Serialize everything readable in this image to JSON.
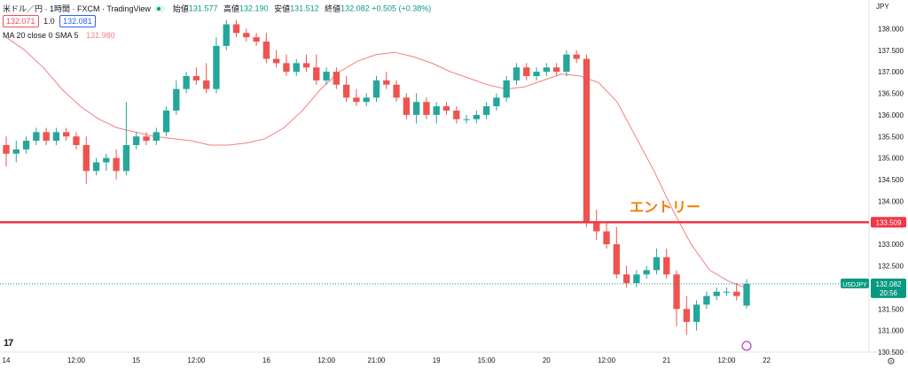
{
  "header": {
    "symbol_title": "米ドル／円 · 1時間 · FXCM · TradingView",
    "open_label": "始値",
    "open": "131.577",
    "high_label": "高値",
    "high": "132.190",
    "low_label": "安値",
    "low": "131.512",
    "close_label": "終値",
    "close": "132.082",
    "change": "+0.505 (+0.38%)",
    "bid": "132.071",
    "spread": "1.0",
    "ask": "132.081"
  },
  "indicator": {
    "label": "MA 20 close 0 SMA 5",
    "value": "131.980"
  },
  "annotation": {
    "text": "エントリー",
    "level": "133.509"
  },
  "colors": {
    "up": "#26a69a",
    "down": "#ef5350",
    "ma": "#f77c80",
    "entry_line": "#f23645",
    "annotation": "#f57c00",
    "price_tag": "#089981"
  },
  "current_price_tag": {
    "symbol": "USDJPY",
    "price": "132.082",
    "countdown": "20:56"
  },
  "chart_data": {
    "type": "candlestick",
    "currency": "JPY",
    "ylim": [
      130.5,
      138.5
    ],
    "y_ticks": [
      "138.000",
      "137.500",
      "137.000",
      "136.500",
      "136.000",
      "135.500",
      "135.000",
      "134.500",
      "134.000",
      "133.500",
      "133.000",
      "132.500",
      "132.000",
      "131.500",
      "131.000",
      "130.500"
    ],
    "x_ticks": [
      "14",
      "12:00",
      "15",
      "12:00",
      "16",
      "12:00",
      "21:00",
      "19",
      "15:00",
      "20",
      "12:00",
      "21",
      "12:00",
      "22"
    ],
    "ma_series_name": "MA 20 close 0 SMA 5",
    "ma": [
      137.8,
      137.5,
      137.1,
      136.6,
      136.2,
      135.9,
      135.7,
      135.6,
      135.5,
      135.45,
      135.4,
      135.3,
      135.3,
      135.35,
      135.45,
      135.7,
      136.1,
      136.6,
      137.0,
      137.25,
      137.4,
      137.45,
      137.35,
      137.2,
      137.0,
      136.85,
      136.7,
      136.6,
      136.65,
      136.8,
      136.95,
      136.9,
      136.75,
      136.3,
      135.5,
      134.7,
      133.8,
      133.0,
      132.4,
      132.15,
      131.98
    ],
    "candles": [
      {
        "o": 135.3,
        "h": 135.5,
        "l": 134.8,
        "c": 135.1
      },
      {
        "o": 135.1,
        "h": 135.4,
        "l": 134.9,
        "c": 135.2
      },
      {
        "o": 135.2,
        "h": 135.5,
        "l": 135.1,
        "c": 135.4
      },
      {
        "o": 135.4,
        "h": 135.7,
        "l": 135.3,
        "c": 135.6
      },
      {
        "o": 135.6,
        "h": 135.7,
        "l": 135.3,
        "c": 135.4
      },
      {
        "o": 135.4,
        "h": 135.7,
        "l": 135.3,
        "c": 135.6
      },
      {
        "o": 135.6,
        "h": 135.7,
        "l": 135.4,
        "c": 135.5
      },
      {
        "o": 135.5,
        "h": 135.6,
        "l": 135.2,
        "c": 135.3
      },
      {
        "o": 135.3,
        "h": 135.5,
        "l": 134.4,
        "c": 134.7
      },
      {
        "o": 134.7,
        "h": 135.0,
        "l": 134.6,
        "c": 134.9
      },
      {
        "o": 134.9,
        "h": 135.1,
        "l": 134.7,
        "c": 135.0
      },
      {
        "o": 135.0,
        "h": 135.2,
        "l": 134.5,
        "c": 134.7
      },
      {
        "o": 134.7,
        "h": 136.3,
        "l": 134.6,
        "c": 135.3
      },
      {
        "o": 135.3,
        "h": 135.6,
        "l": 135.2,
        "c": 135.5
      },
      {
        "o": 135.5,
        "h": 135.6,
        "l": 135.3,
        "c": 135.4
      },
      {
        "o": 135.4,
        "h": 135.7,
        "l": 135.3,
        "c": 135.6
      },
      {
        "o": 135.6,
        "h": 136.2,
        "l": 135.5,
        "c": 136.1
      },
      {
        "o": 136.1,
        "h": 136.8,
        "l": 136.0,
        "c": 136.6
      },
      {
        "o": 136.6,
        "h": 137.0,
        "l": 136.5,
        "c": 136.9
      },
      {
        "o": 136.9,
        "h": 137.1,
        "l": 136.7,
        "c": 136.8
      },
      {
        "o": 136.8,
        "h": 137.2,
        "l": 136.5,
        "c": 136.6
      },
      {
        "o": 136.6,
        "h": 137.8,
        "l": 136.5,
        "c": 137.6
      },
      {
        "o": 137.6,
        "h": 138.2,
        "l": 137.5,
        "c": 138.1
      },
      {
        "o": 138.1,
        "h": 138.2,
        "l": 137.8,
        "c": 137.9
      },
      {
        "o": 137.9,
        "h": 138.0,
        "l": 137.7,
        "c": 137.8
      },
      {
        "o": 137.8,
        "h": 137.9,
        "l": 137.6,
        "c": 137.7
      },
      {
        "o": 137.7,
        "h": 137.9,
        "l": 137.2,
        "c": 137.3
      },
      {
        "o": 137.3,
        "h": 137.5,
        "l": 137.1,
        "c": 137.2
      },
      {
        "o": 137.2,
        "h": 137.4,
        "l": 136.9,
        "c": 137.0
      },
      {
        "o": 137.0,
        "h": 137.3,
        "l": 136.9,
        "c": 137.2
      },
      {
        "o": 137.2,
        "h": 137.4,
        "l": 137.0,
        "c": 137.1
      },
      {
        "o": 137.1,
        "h": 137.4,
        "l": 136.7,
        "c": 136.8
      },
      {
        "o": 136.8,
        "h": 137.1,
        "l": 136.7,
        "c": 137.0
      },
      {
        "o": 137.0,
        "h": 137.1,
        "l": 136.6,
        "c": 136.7
      },
      {
        "o": 136.7,
        "h": 136.9,
        "l": 136.3,
        "c": 136.4
      },
      {
        "o": 136.4,
        "h": 136.6,
        "l": 136.2,
        "c": 136.3
      },
      {
        "o": 136.3,
        "h": 136.5,
        "l": 136.2,
        "c": 136.4
      },
      {
        "o": 136.4,
        "h": 136.9,
        "l": 136.3,
        "c": 136.8
      },
      {
        "o": 136.8,
        "h": 137.0,
        "l": 136.6,
        "c": 136.7
      },
      {
        "o": 136.7,
        "h": 136.8,
        "l": 136.3,
        "c": 136.4
      },
      {
        "o": 136.4,
        "h": 136.5,
        "l": 135.9,
        "c": 136.0
      },
      {
        "o": 136.0,
        "h": 136.5,
        "l": 135.8,
        "c": 136.3
      },
      {
        "o": 136.3,
        "h": 136.4,
        "l": 135.9,
        "c": 136.0
      },
      {
        "o": 136.0,
        "h": 136.3,
        "l": 135.8,
        "c": 136.2
      },
      {
        "o": 136.2,
        "h": 136.3,
        "l": 136.0,
        "c": 136.1
      },
      {
        "o": 136.1,
        "h": 136.2,
        "l": 135.8,
        "c": 135.9
      },
      {
        "o": 135.9,
        "h": 136.0,
        "l": 135.8,
        "c": 135.9
      },
      {
        "o": 135.9,
        "h": 136.1,
        "l": 135.8,
        "c": 136.0
      },
      {
        "o": 136.0,
        "h": 136.3,
        "l": 135.9,
        "c": 136.2
      },
      {
        "o": 136.2,
        "h": 136.5,
        "l": 136.1,
        "c": 136.4
      },
      {
        "o": 136.4,
        "h": 136.9,
        "l": 136.3,
        "c": 136.8
      },
      {
        "o": 136.8,
        "h": 137.2,
        "l": 136.7,
        "c": 137.1
      },
      {
        "o": 137.1,
        "h": 137.2,
        "l": 136.8,
        "c": 136.9
      },
      {
        "o": 136.9,
        "h": 137.1,
        "l": 136.8,
        "c": 137.0
      },
      {
        "o": 137.0,
        "h": 137.2,
        "l": 136.9,
        "c": 137.1
      },
      {
        "o": 137.1,
        "h": 137.2,
        "l": 136.9,
        "c": 137.0
      },
      {
        "o": 137.0,
        "h": 137.5,
        "l": 136.9,
        "c": 137.4
      },
      {
        "o": 137.4,
        "h": 137.5,
        "l": 137.2,
        "c": 137.3
      },
      {
        "o": 137.3,
        "h": 137.4,
        "l": 133.4,
        "c": 133.5
      },
      {
        "o": 133.5,
        "h": 133.8,
        "l": 133.1,
        "c": 133.3
      },
      {
        "o": 133.3,
        "h": 133.5,
        "l": 132.9,
        "c": 133.0
      },
      {
        "o": 133.0,
        "h": 133.4,
        "l": 132.2,
        "c": 132.3
      },
      {
        "o": 132.3,
        "h": 132.5,
        "l": 132.0,
        "c": 132.1
      },
      {
        "o": 132.1,
        "h": 132.4,
        "l": 132.0,
        "c": 132.3
      },
      {
        "o": 132.3,
        "h": 132.5,
        "l": 132.2,
        "c": 132.4
      },
      {
        "o": 132.4,
        "h": 132.9,
        "l": 132.3,
        "c": 132.7
      },
      {
        "o": 132.7,
        "h": 132.9,
        "l": 132.2,
        "c": 132.3
      },
      {
        "o": 132.3,
        "h": 132.4,
        "l": 131.1,
        "c": 131.5
      },
      {
        "o": 131.5,
        "h": 131.8,
        "l": 130.9,
        "c": 131.2
      },
      {
        "o": 131.2,
        "h": 131.7,
        "l": 131.0,
        "c": 131.6
      },
      {
        "o": 131.6,
        "h": 131.9,
        "l": 131.5,
        "c": 131.8
      },
      {
        "o": 131.8,
        "h": 132.0,
        "l": 131.7,
        "c": 131.9
      },
      {
        "o": 131.9,
        "h": 132.0,
        "l": 131.8,
        "c": 131.9
      },
      {
        "o": 131.9,
        "h": 132.1,
        "l": 131.7,
        "c": 131.8
      },
      {
        "o": 131.577,
        "h": 132.19,
        "l": 131.512,
        "c": 132.082
      }
    ]
  }
}
